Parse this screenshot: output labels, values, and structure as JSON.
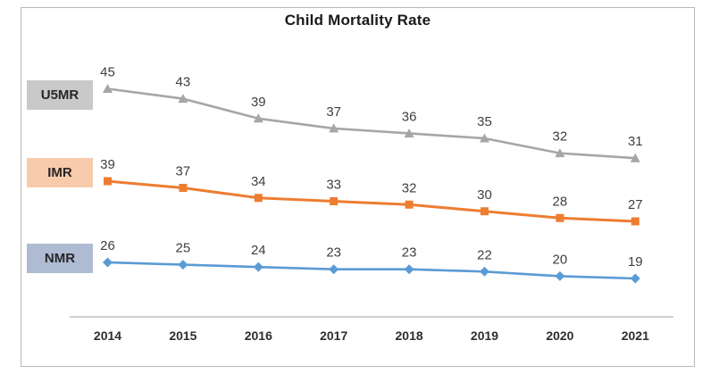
{
  "chart_data": {
    "type": "line",
    "title": "Child Mortality Rate",
    "categories": [
      "2014",
      "2015",
      "2016",
      "2017",
      "2018",
      "2019",
      "2020",
      "2021"
    ],
    "series": [
      {
        "name": "U5MR",
        "values": [
          45,
          43,
          39,
          37,
          36,
          35,
          32,
          31
        ],
        "line_color": "#a6a6a6",
        "marker": "triangle",
        "legend_fill": "#c9c9c9"
      },
      {
        "name": "IMR",
        "values": [
          39,
          37,
          34,
          33,
          32,
          30,
          28,
          27
        ],
        "line_color": "#ed7d31",
        "marker": "square",
        "legend_fill": "#f7cbac"
      },
      {
        "name": "NMR",
        "values": [
          26,
          25,
          24,
          23,
          23,
          22,
          20,
          19
        ],
        "line_color": "#5b9bd5",
        "marker": "diamond",
        "legend_fill": "#aebbd3"
      }
    ],
    "legend_position": "left",
    "grid": false,
    "data_labels_shown": true,
    "data_label_color": "#3f3f3f",
    "title_color": "#1a1a1a",
    "x_axis": {
      "line_color": "#bfbfbf",
      "tick_label_color": "#2e2e2e"
    },
    "background": "#ffffff"
  }
}
